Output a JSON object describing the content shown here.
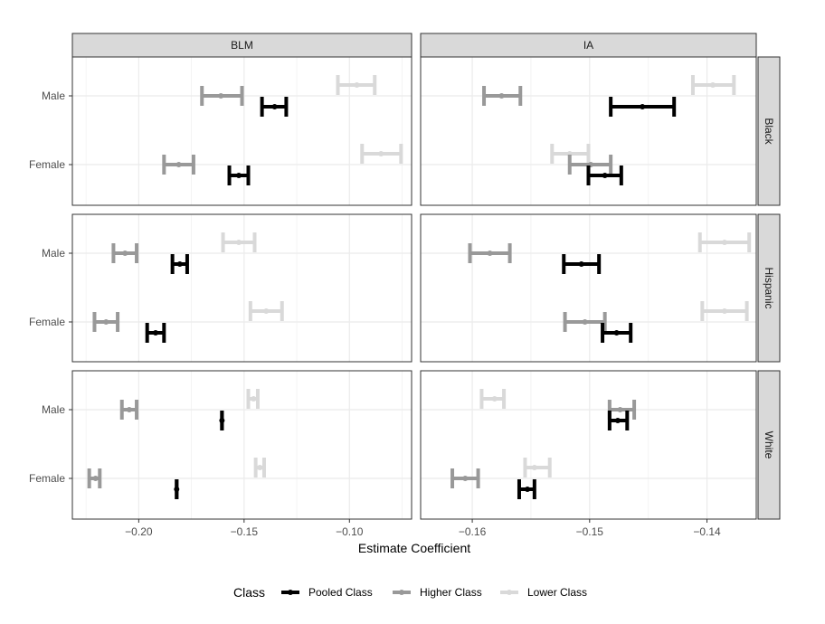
{
  "chart_data": {
    "type": "errorbar",
    "xlabel": "Estimate Coefficient",
    "legend": {
      "title": "Class",
      "position": "bottom",
      "items": [
        {
          "name": "Pooled Class",
          "color": "#000000"
        },
        {
          "name": "Higher Class",
          "color": "#999999"
        },
        {
          "name": "Lower Class",
          "color": "#d9d9d9"
        }
      ]
    },
    "columns": [
      {
        "name": "BLM",
        "xlim": [
          -0.2315,
          -0.0705
        ],
        "ticks": [
          -0.2,
          -0.15,
          -0.1
        ],
        "tick_labels": [
          "−0.20",
          "−0.15",
          "−0.10"
        ]
      },
      {
        "name": "IA",
        "xlim": [
          -0.1644,
          -0.1358
        ],
        "ticks": [
          -0.16,
          -0.15,
          -0.14
        ],
        "tick_labels": [
          "−0.16",
          "−0.15",
          "−0.14"
        ]
      }
    ],
    "rows": [
      "Black",
      "Hispanic",
      "White"
    ],
    "y_categories": [
      "Male",
      "Female"
    ],
    "panels": [
      {
        "column": "BLM",
        "row": "Black",
        "points": [
          {
            "group": "Male",
            "class": "Pooled Class",
            "estimate": -0.1355,
            "low": -0.1415,
            "high": -0.13
          },
          {
            "group": "Male",
            "class": "Higher Class",
            "estimate": -0.161,
            "low": -0.17,
            "high": -0.151
          },
          {
            "group": "Male",
            "class": "Lower Class",
            "estimate": -0.0965,
            "low": -0.1055,
            "high": -0.088
          },
          {
            "group": "Female",
            "class": "Pooled Class",
            "estimate": -0.1525,
            "low": -0.157,
            "high": -0.148
          },
          {
            "group": "Female",
            "class": "Higher Class",
            "estimate": -0.181,
            "low": -0.188,
            "high": -0.174
          },
          {
            "group": "Female",
            "class": "Lower Class",
            "estimate": -0.085,
            "low": -0.094,
            "high": -0.0755
          }
        ]
      },
      {
        "column": "IA",
        "row": "Black",
        "points": [
          {
            "group": "Male",
            "class": "Pooled Class",
            "estimate": -0.1455,
            "low": -0.1482,
            "high": -0.1428
          },
          {
            "group": "Male",
            "class": "Higher Class",
            "estimate": -0.1575,
            "low": -0.159,
            "high": -0.1559
          },
          {
            "group": "Male",
            "class": "Lower Class",
            "estimate": -0.1395,
            "low": -0.1412,
            "high": -0.1377
          },
          {
            "group": "Female",
            "class": "Pooled Class",
            "estimate": -0.1487,
            "low": -0.1501,
            "high": -0.1473
          },
          {
            "group": "Female",
            "class": "Higher Class",
            "estimate": -0.1499,
            "low": -0.1517,
            "high": -0.1482
          },
          {
            "group": "Female",
            "class": "Lower Class",
            "estimate": -0.1517,
            "low": -0.1532,
            "high": -0.1501
          }
        ]
      },
      {
        "column": "BLM",
        "row": "Hispanic",
        "points": [
          {
            "group": "Male",
            "class": "Pooled Class",
            "estimate": -0.1805,
            "low": -0.184,
            "high": -0.177
          },
          {
            "group": "Male",
            "class": "Higher Class",
            "estimate": -0.2065,
            "low": -0.212,
            "high": -0.201
          },
          {
            "group": "Male",
            "class": "Lower Class",
            "estimate": -0.1525,
            "low": -0.16,
            "high": -0.145
          },
          {
            "group": "Female",
            "class": "Pooled Class",
            "estimate": -0.192,
            "low": -0.196,
            "high": -0.188
          },
          {
            "group": "Female",
            "class": "Higher Class",
            "estimate": -0.2155,
            "low": -0.221,
            "high": -0.21
          },
          {
            "group": "Female",
            "class": "Lower Class",
            "estimate": -0.1395,
            "low": -0.147,
            "high": -0.132
          }
        ]
      },
      {
        "column": "IA",
        "row": "Hispanic",
        "points": [
          {
            "group": "Male",
            "class": "Pooled Class",
            "estimate": -0.1507,
            "low": -0.1522,
            "high": -0.1492
          },
          {
            "group": "Male",
            "class": "Higher Class",
            "estimate": -0.1585,
            "low": -0.1602,
            "high": -0.1568
          },
          {
            "group": "Male",
            "class": "Lower Class",
            "estimate": -0.1385,
            "low": -0.1406,
            "high": -0.1364
          },
          {
            "group": "Female",
            "class": "Pooled Class",
            "estimate": -0.1477,
            "low": -0.1489,
            "high": -0.1465
          },
          {
            "group": "Female",
            "class": "Higher Class",
            "estimate": -0.1504,
            "low": -0.1521,
            "high": -0.1487
          },
          {
            "group": "Female",
            "class": "Lower Class",
            "estimate": -0.1385,
            "low": -0.1404,
            "high": -0.1366
          }
        ]
      },
      {
        "column": "BLM",
        "row": "White",
        "points": [
          {
            "group": "Male",
            "class": "Pooled Class",
            "estimate": -0.1605,
            "low": -0.1605,
            "high": -0.1605
          },
          {
            "group": "Male",
            "class": "Higher Class",
            "estimate": -0.2045,
            "low": -0.208,
            "high": -0.201
          },
          {
            "group": "Male",
            "class": "Lower Class",
            "estimate": -0.1455,
            "low": -0.148,
            "high": -0.1435
          },
          {
            "group": "Female",
            "class": "Pooled Class",
            "estimate": -0.182,
            "low": -0.182,
            "high": -0.182
          },
          {
            "group": "Female",
            "class": "Higher Class",
            "estimate": -0.2205,
            "low": -0.2235,
            "high": -0.2185
          },
          {
            "group": "Female",
            "class": "Lower Class",
            "estimate": -0.1425,
            "low": -0.1445,
            "high": -0.1405
          }
        ]
      },
      {
        "column": "IA",
        "row": "White",
        "points": [
          {
            "group": "Male",
            "class": "Pooled Class",
            "estimate": -0.1476,
            "low": -0.1483,
            "high": -0.1468
          },
          {
            "group": "Male",
            "class": "Higher Class",
            "estimate": -0.1474,
            "low": -0.1483,
            "high": -0.1462
          },
          {
            "group": "Male",
            "class": "Lower Class",
            "estimate": -0.1581,
            "low": -0.1592,
            "high": -0.1573
          },
          {
            "group": "Female",
            "class": "Pooled Class",
            "estimate": -0.1553,
            "low": -0.156,
            "high": -0.1547
          },
          {
            "group": "Female",
            "class": "Higher Class",
            "estimate": -0.1606,
            "low": -0.1617,
            "high": -0.1595
          },
          {
            "group": "Female",
            "class": "Lower Class",
            "estimate": -0.1547,
            "low": -0.1555,
            "high": -0.1534
          }
        ]
      }
    ]
  }
}
